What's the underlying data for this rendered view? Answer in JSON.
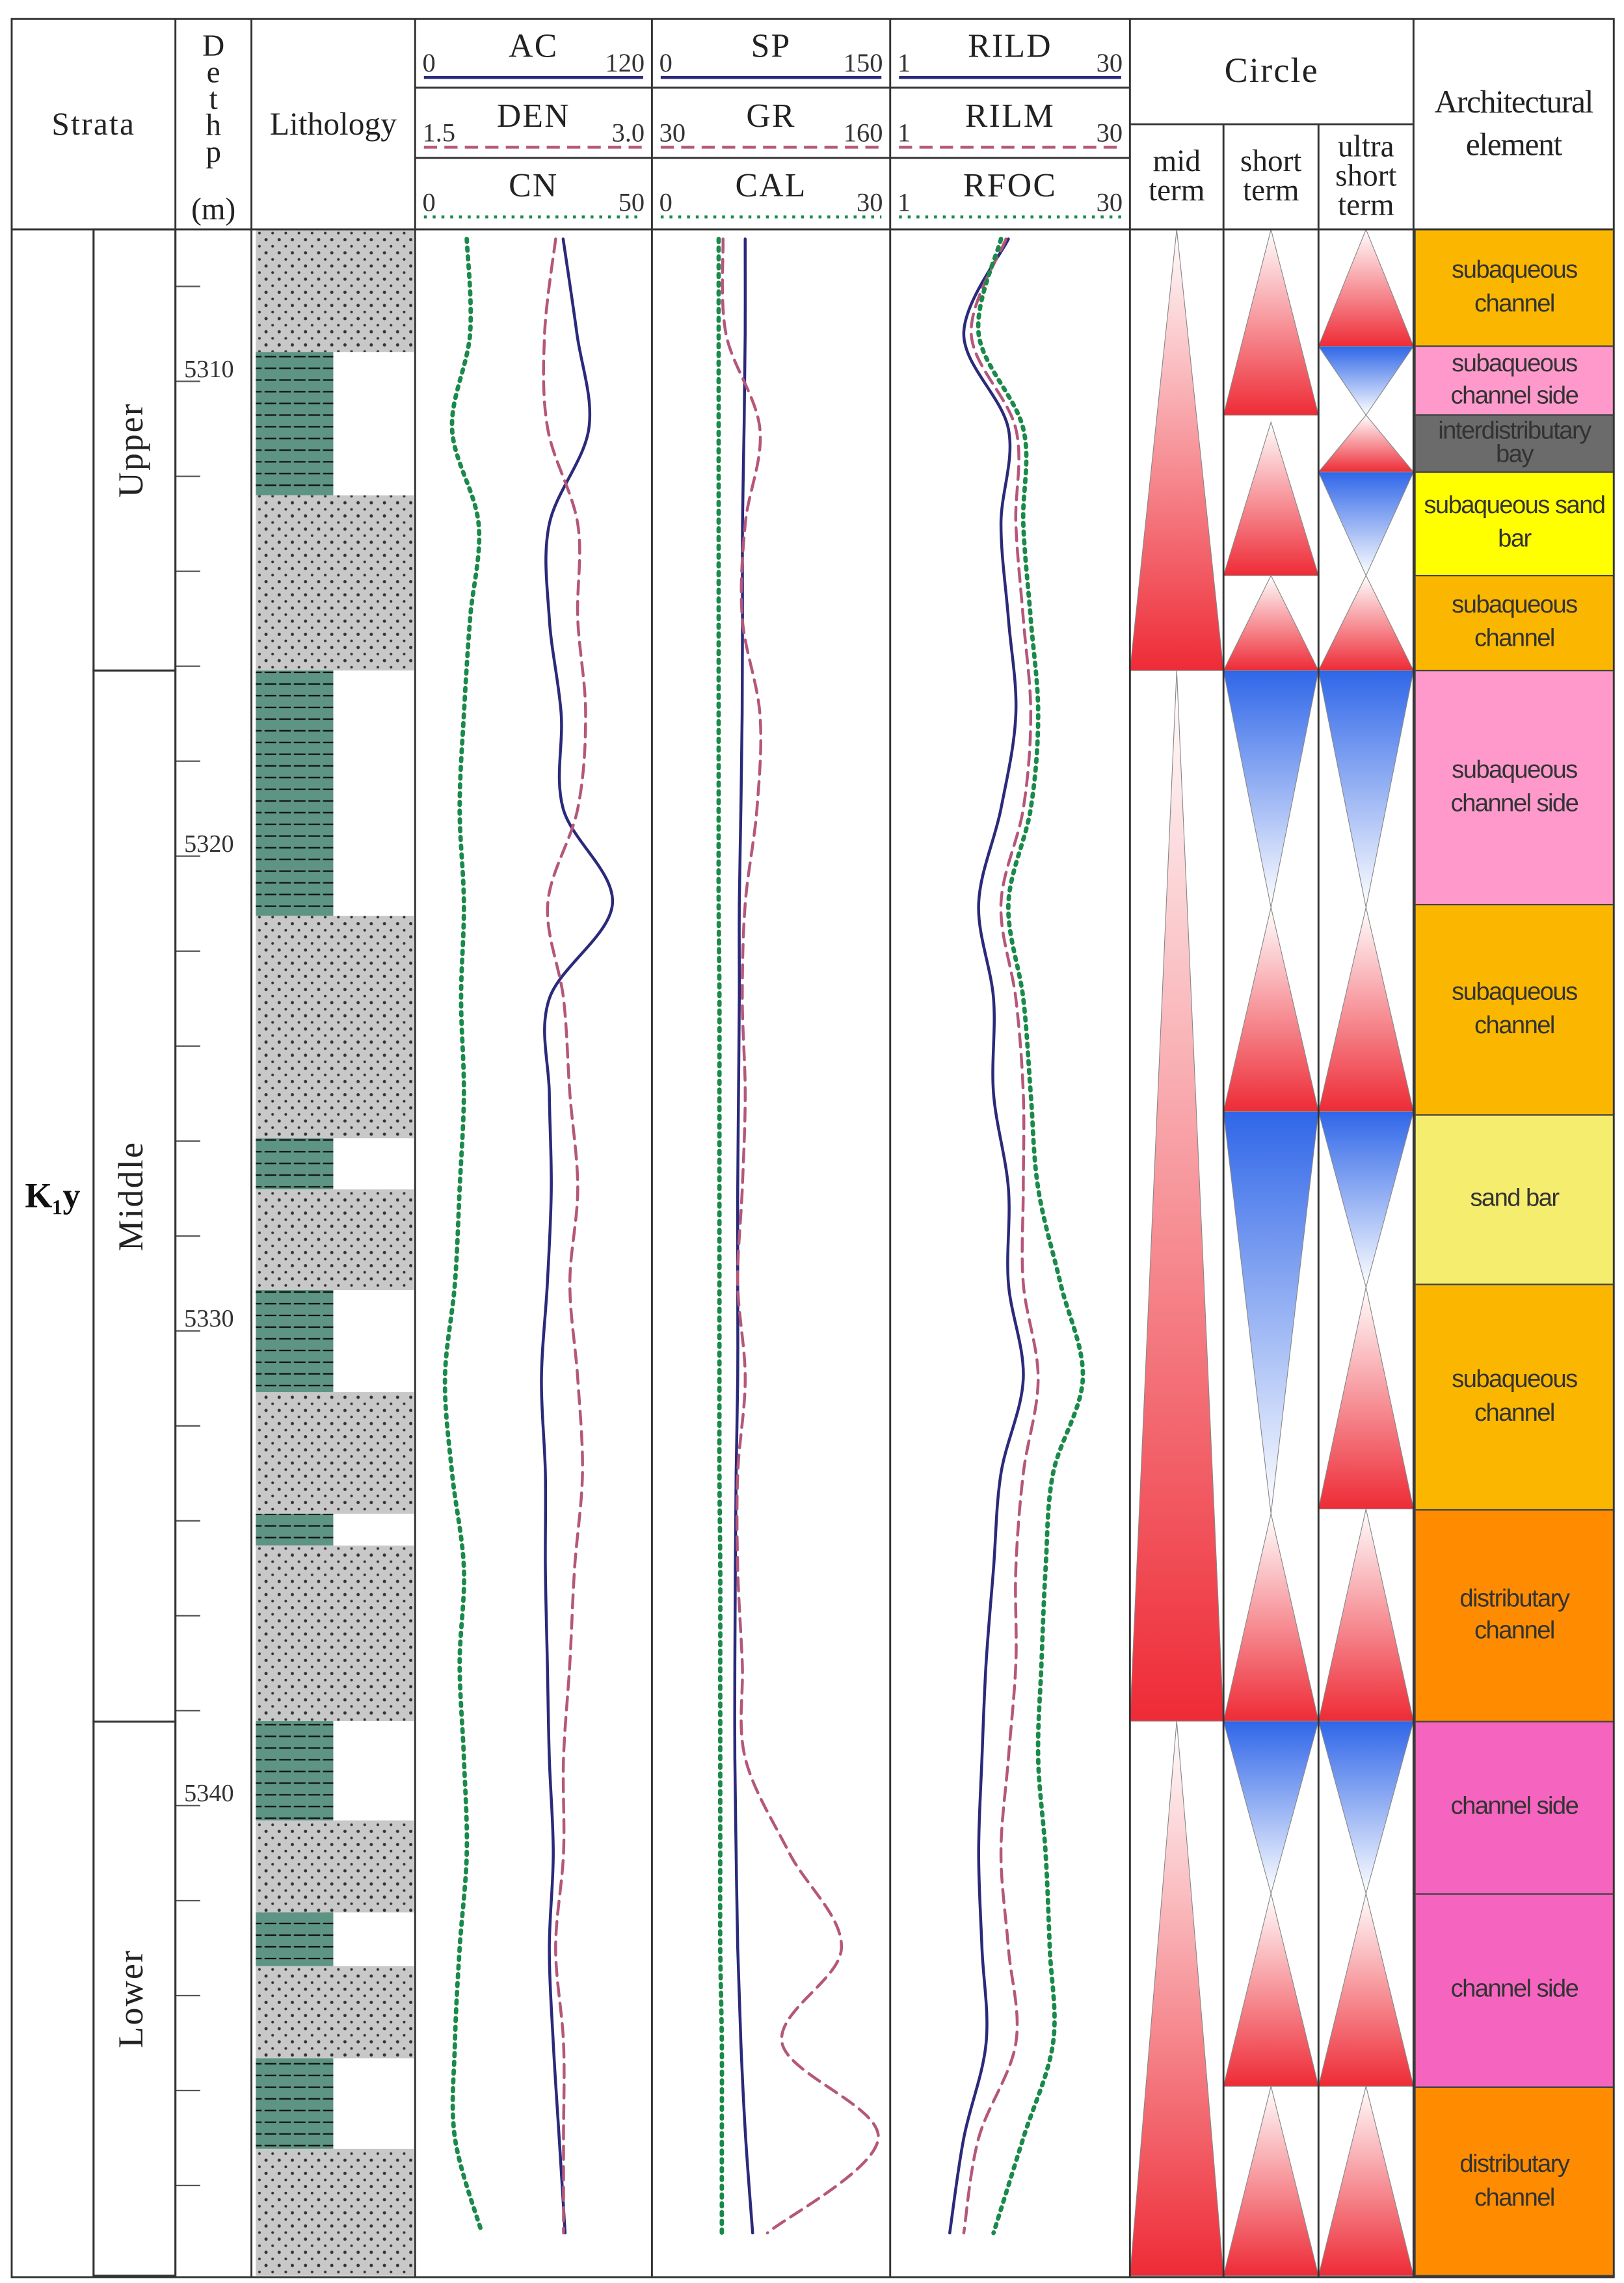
{
  "header": {
    "strata": "Strata",
    "depth": "Dethp",
    "depth_unit": "(m)",
    "lithology": "Lithology",
    "circle": "Circle",
    "architecture": "Architectural element"
  },
  "strata": {
    "formation": "K₁y",
    "members": [
      {
        "label": "Upper",
        "top": 5306.8,
        "bottom": 5316.09
      },
      {
        "label": "Middle",
        "top": 5316.09,
        "bottom": 5338.23
      },
      {
        "label": "Lower",
        "top": 5338.23,
        "bottom": 5349.9
      }
    ]
  },
  "depth_lim": [
    5306.8,
    5349.9
  ],
  "depth_ticks": [
    5310,
    5320,
    5330,
    5340
  ],
  "depth_minor_ticks": [
    5308,
    5312,
    5314,
    5316,
    5318,
    5322,
    5324,
    5326,
    5328,
    5332,
    5334,
    5336,
    5338,
    5342,
    5344,
    5346,
    5348
  ],
  "depths": [
    5307,
    5309,
    5311,
    5313,
    5315,
    5317,
    5319,
    5321,
    5323,
    5325,
    5327,
    5329,
    5331,
    5333,
    5335,
    5337,
    5339,
    5341,
    5343,
    5345,
    5347,
    5349
  ],
  "tracks": [
    {
      "curves": [
        {
          "name": "AC",
          "color": "#2b2a7a",
          "dash": "solid",
          "range": [
            0,
            120
          ],
          "values": [
            75,
            82,
            88,
            68,
            68,
            74,
            75,
            100,
            68,
            68,
            69,
            67,
            64,
            66,
            66,
            67,
            68,
            70,
            68,
            70,
            73,
            76
          ]
        },
        {
          "name": "DEN",
          "color": "#b5577a",
          "dash": "dashed",
          "range": [
            1.5,
            {
              "value": 3,
              "label": "3.0"
            }
          ],
          "values": [
            2.39,
            2.32,
            2.34,
            2.53,
            2.53,
            2.58,
            2.53,
            2.34,
            2.44,
            2.48,
            2.53,
            2.48,
            2.53,
            2.56,
            2.51,
            2.48,
            2.44,
            2.44,
            2.39,
            2.44,
            2.44,
            2.44
          ]
        },
        {
          "name": "CN",
          "color": "#1a8a4a",
          "dash": "dotted",
          "range": [
            0,
            50
          ],
          "values": [
            10.9,
            11.6,
            7.8,
            13.4,
            11.6,
            10.3,
            9.4,
            10.3,
            9.7,
            10.3,
            9.4,
            8.4,
            6.3,
            7.8,
            10.3,
            9.4,
            10.3,
            10.9,
            9.4,
            8.4,
            8.4,
            14.1
          ]
        }
      ]
    },
    {
      "curves": [
        {
          "name": "SP",
          "color": "#2b2a7a",
          "dash": "solid",
          "range": [
            0,
            150
          ],
          "values": [
            58.7,
            58.7,
            58,
            57,
            57,
            56.8,
            56,
            55,
            55,
            54.5,
            54,
            54,
            54,
            53,
            52.5,
            52.2,
            52.2,
            53,
            54,
            56,
            59,
            63.4
          ]
        },
        {
          "name": "GR",
          "color": "#b5577a",
          "dash": "dashed",
          "range": [
            30,
            160
          ],
          "values": [
            68.8,
            70.4,
            88.9,
            80.9,
            79.3,
            88.9,
            87.3,
            80.9,
            79.3,
            80.9,
            79.3,
            76.8,
            80.9,
            76.8,
            76.8,
            79.3,
            80.9,
            105,
            133.4,
            101,
            153.5,
            93
          ]
        },
        {
          "name": "CAL",
          "color": "#1a8a4a",
          "dash": "dotted",
          "range": [
            0,
            30
          ],
          "values": [
            8.4,
            8.4,
            8.4,
            8.4,
            8.4,
            8.4,
            8.4,
            8.4,
            8.5,
            8.5,
            8.5,
            8.5,
            8.5,
            8.5,
            8.6,
            8.6,
            8.6,
            8.6,
            8.6,
            8.8,
            8.8,
            8.8
          ]
        }
      ]
    },
    {
      "curves": [
        {
          "name": "RILD",
          "color": "#2b2a7a",
          "dash": "solid",
          "range": [
            1,
            30
          ],
          "values": [
            15.3,
            9.9,
            15.3,
            14.4,
            15.3,
            16.2,
            14.4,
            11.7,
            13.5,
            13.5,
            15.3,
            15.3,
            17.1,
            14.4,
            13.5,
            12.6,
            12.1,
            11.7,
            12.1,
            12.6,
            9.9,
            8.2
          ]
        },
        {
          "name": "RILM",
          "color": "#b5577a",
          "dash": "dashed",
          "range": [
            1,
            30
          ],
          "values": [
            15.0,
            10.8,
            16.2,
            16.2,
            17.1,
            18.0,
            17.1,
            14.4,
            16.2,
            17.1,
            17.1,
            17.1,
            18.9,
            17.1,
            16.2,
            16.2,
            15.3,
            14.4,
            15.3,
            16.2,
            11.7,
            9.9
          ]
        },
        {
          "name": "RFOC",
          "color": "#1a8a4a",
          "dash": "dotted",
          "range": [
            1,
            30
          ],
          "values": [
            14.4,
            11.7,
            17.1,
            17.1,
            18.0,
            18.9,
            18.0,
            15.3,
            17.1,
            18.0,
            18.9,
            21.6,
            24.3,
            20.7,
            19.8,
            19.3,
            18.9,
            19.8,
            20.3,
            20.7,
            17.1,
            13.5
          ]
        }
      ]
    }
  ],
  "lithology": [
    {
      "top": 5306.8,
      "bottom": 5309.38,
      "color": "#c8c8c8"
    },
    {
      "top": 5309.38,
      "bottom": 5312.4,
      "color": "#5e9484"
    },
    {
      "top": 5312.4,
      "bottom": 5316.09,
      "color": "#c8c8c8"
    },
    {
      "top": 5316.09,
      "bottom": 5321.26,
      "color": "#5e9484"
    },
    {
      "top": 5321.26,
      "bottom": 5325.94,
      "color": "#c8c8c8"
    },
    {
      "top": 5325.94,
      "bottom": 5327.02,
      "color": "#5e9484"
    },
    {
      "top": 5327.02,
      "bottom": 5329.14,
      "color": "#c8c8c8"
    },
    {
      "top": 5329.14,
      "bottom": 5331.29,
      "color": "#5e9484"
    },
    {
      "top": 5331.29,
      "bottom": 5333.85,
      "color": "#c8c8c8"
    },
    {
      "top": 5333.85,
      "bottom": 5334.52,
      "color": "#5e9484"
    },
    {
      "top": 5334.52,
      "bottom": 5338.22,
      "color": "#c8c8c8"
    },
    {
      "top": 5338.22,
      "bottom": 5340.31,
      "color": "#5e9484"
    },
    {
      "top": 5340.31,
      "bottom": 5342.25,
      "color": "#c8c8c8"
    },
    {
      "top": 5342.25,
      "bottom": 5343.38,
      "color": "#5e9484"
    },
    {
      "top": 5343.38,
      "bottom": 5345.32,
      "color": "#c8c8c8"
    },
    {
      "top": 5345.32,
      "bottom": 5347.23,
      "color": "#5e9484"
    },
    {
      "top": 5347.23,
      "bottom": 5349.9,
      "color": "#c8c8c8"
    }
  ],
  "cycle_columns": [
    {
      "label": "mid term",
      "intervals": [
        {
          "top": 5306.8,
          "bottom": 5316.09,
          "apex": "top",
          "color": "#ee2b36"
        },
        {
          "top": 5316.09,
          "bottom": 5338.22,
          "apex": "top",
          "color": "#ee2b36"
        },
        {
          "top": 5338.22,
          "bottom": 5349.9,
          "apex": "top",
          "color": "#ee2b36"
        }
      ]
    },
    {
      "label": "short term",
      "intervals": [
        {
          "top": 5306.8,
          "bottom": 5310.71,
          "apex": "top",
          "color": "#ee2b36"
        },
        {
          "top": 5310.86,
          "bottom": 5314.09,
          "apex": "top",
          "color": "#ee2b36"
        },
        {
          "top": 5314.09,
          "bottom": 5316.09,
          "apex": "top",
          "color": "#ee2b36"
        },
        {
          "top": 5316.09,
          "bottom": 5321.08,
          "apex": "bottom",
          "color": "#2f66e8"
        },
        {
          "top": 5321.08,
          "bottom": 5325.38,
          "apex": "top",
          "color": "#ee2b36"
        },
        {
          "top": 5325.38,
          "bottom": 5333.85,
          "apex": "bottom",
          "color": "#2f66e8"
        },
        {
          "top": 5333.85,
          "bottom": 5338.22,
          "apex": "top",
          "color": "#ee2b36"
        },
        {
          "top": 5338.22,
          "bottom": 5341.85,
          "apex": "bottom",
          "color": "#2f66e8"
        },
        {
          "top": 5341.85,
          "bottom": 5345.91,
          "apex": "top",
          "color": "#ee2b36"
        },
        {
          "top": 5345.91,
          "bottom": 5349.9,
          "apex": "top",
          "color": "#ee2b36"
        }
      ]
    },
    {
      "label": "ultra short term",
      "intervals": [
        {
          "top": 5306.8,
          "bottom": 5309.26,
          "apex": "top",
          "color": "#ee2b36"
        },
        {
          "top": 5309.26,
          "bottom": 5310.71,
          "apex": "bottom",
          "color": "#2f66e8"
        },
        {
          "top": 5310.71,
          "bottom": 5311.91,
          "apex": "top",
          "color": "#ee2b36"
        },
        {
          "top": 5311.91,
          "bottom": 5314.09,
          "apex": "bottom",
          "color": "#2f66e8"
        },
        {
          "top": 5314.09,
          "bottom": 5316.09,
          "apex": "top",
          "color": "#ee2b36"
        },
        {
          "top": 5316.09,
          "bottom": 5321.08,
          "apex": "bottom",
          "color": "#2f66e8"
        },
        {
          "top": 5321.08,
          "bottom": 5325.38,
          "apex": "top",
          "color": "#ee2b36"
        },
        {
          "top": 5325.38,
          "bottom": 5329.08,
          "apex": "bottom",
          "color": "#2f66e8"
        },
        {
          "top": 5329.08,
          "bottom": 5333.75,
          "apex": "top",
          "color": "#ee2b36"
        },
        {
          "top": 5333.75,
          "bottom": 5338.22,
          "apex": "top",
          "color": "#ee2b36"
        },
        {
          "top": 5338.22,
          "bottom": 5341.85,
          "apex": "bottom",
          "color": "#2f66e8"
        },
        {
          "top": 5341.85,
          "bottom": 5345.91,
          "apex": "top",
          "color": "#ee2b36"
        },
        {
          "top": 5345.91,
          "bottom": 5349.9,
          "apex": "top",
          "color": "#ee2b36"
        }
      ]
    }
  ],
  "architecture": [
    {
      "label": "subaqueous channel",
      "top": 5306.8,
      "bottom": 5309.26,
      "color": "#fbb700"
    },
    {
      "label": "subaqueous channel side",
      "top": 5309.26,
      "bottom": 5310.71,
      "color": "#ff99cc"
    },
    {
      "label": "interdistributary bay",
      "top": 5310.71,
      "bottom": 5311.91,
      "color": "#6b6b6b"
    },
    {
      "label": "subaqueous sand bar",
      "top": 5311.91,
      "bottom": 5314.09,
      "color": "#ffff00"
    },
    {
      "label": "subaqueous channel",
      "top": 5314.09,
      "bottom": 5316.09,
      "color": "#fbb700"
    },
    {
      "label": "subaqueous channel side",
      "top": 5316.09,
      "bottom": 5321.02,
      "color": "#ff99cc"
    },
    {
      "label": "subaqueous channel",
      "top": 5321.02,
      "bottom": 5325.45,
      "color": "#fbb700"
    },
    {
      "label": "sand bar",
      "top": 5325.45,
      "bottom": 5329.02,
      "color": "#f5ed6e"
    },
    {
      "label": "subaqueous channel",
      "top": 5329.02,
      "bottom": 5333.77,
      "color": "#fbb700"
    },
    {
      "label": "distributary channel",
      "top": 5333.77,
      "bottom": 5338.23,
      "color": "#ff8c00"
    },
    {
      "label": "channel side",
      "top": 5338.23,
      "bottom": 5341.86,
      "color": "#f564bf"
    },
    {
      "label": "channel side",
      "top": 5341.86,
      "bottom": 5345.93,
      "color": "#f564bf"
    },
    {
      "label": "distributary channel",
      "top": 5345.93,
      "bottom": 5349.9,
      "color": "#ff8c00"
    }
  ]
}
